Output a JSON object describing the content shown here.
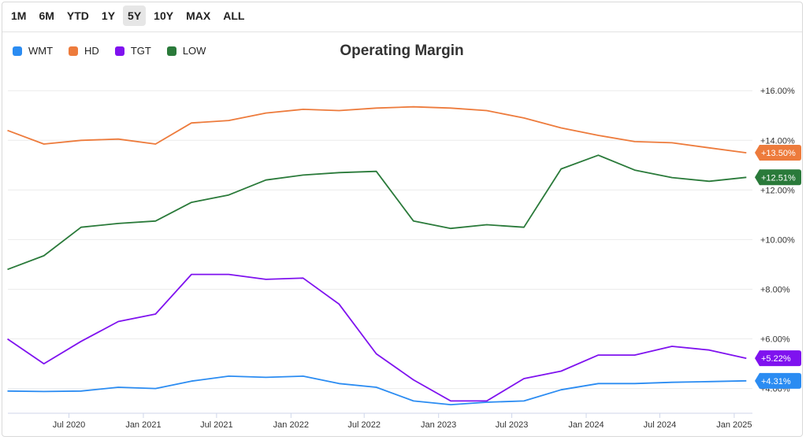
{
  "range_selector": {
    "options": [
      "1M",
      "6M",
      "YTD",
      "1Y",
      "5Y",
      "10Y",
      "MAX",
      "ALL"
    ],
    "selected": "5Y"
  },
  "chart_data": {
    "type": "line",
    "title": "Operating Margin",
    "xlabel": "",
    "ylabel": "",
    "x": [
      "2020-01-31",
      "2020-04-30",
      "2020-07-31",
      "2020-10-31",
      "2021-01-31",
      "2021-04-30",
      "2021-07-31",
      "2021-10-31",
      "2022-01-31",
      "2022-04-30",
      "2022-07-31",
      "2022-10-31",
      "2023-01-31",
      "2023-04-30",
      "2023-07-31",
      "2023-10-31",
      "2024-01-31",
      "2024-04-30",
      "2024-07-31",
      "2024-10-31",
      "2025-01-31"
    ],
    "x_tick_labels": [
      "Jul 2020",
      "Jan 2021",
      "Jul 2021",
      "Jan 2022",
      "Jul 2022",
      "Jan 2023",
      "Jul 2023",
      "Jan 2024",
      "Jul 2024",
      "Jan 2025"
    ],
    "x_tick_dates": [
      "2020-07-01",
      "2021-01-01",
      "2021-07-01",
      "2022-01-01",
      "2022-07-01",
      "2023-01-01",
      "2023-07-01",
      "2024-01-01",
      "2024-07-01",
      "2025-01-01"
    ],
    "x_range": [
      "2020-02-01",
      "2025-02-15"
    ],
    "y_tick_labels": [
      "+16.00%",
      "+14.00%",
      "+12.00%",
      "+10.00%",
      "+8.00%",
      "+6.00%",
      "+4.00%"
    ],
    "y_ticks": [
      16,
      14,
      12,
      10,
      8,
      6,
      4
    ],
    "ylim": [
      3.1,
      16.8
    ],
    "grid": true,
    "legend_position": "top-left",
    "series": [
      {
        "name": "WMT",
        "color": "#2b8cf2",
        "last_label": "+4.31%",
        "values": [
          3.9,
          3.88,
          3.9,
          4.05,
          4.0,
          4.3,
          4.5,
          4.45,
          4.5,
          4.2,
          4.05,
          3.5,
          3.35,
          3.45,
          3.5,
          3.95,
          4.2,
          4.2,
          4.25,
          4.28,
          4.31
        ]
      },
      {
        "name": "HD",
        "color": "#ed7b3c",
        "last_label": "+13.50%",
        "values": [
          14.4,
          13.85,
          14.0,
          14.05,
          13.85,
          14.7,
          14.8,
          15.1,
          15.25,
          15.2,
          15.3,
          15.35,
          15.3,
          15.2,
          14.9,
          14.5,
          14.2,
          13.95,
          13.9,
          13.7,
          13.5
        ]
      },
      {
        "name": "TGT",
        "color": "#7f12ef",
        "last_label": "+5.22%",
        "values": [
          6.0,
          5.0,
          5.9,
          6.7,
          7.0,
          8.6,
          8.6,
          8.4,
          8.45,
          7.4,
          5.4,
          4.35,
          3.5,
          3.5,
          4.4,
          4.7,
          5.35,
          5.35,
          5.7,
          5.55,
          5.22
        ]
      },
      {
        "name": "LOW",
        "color": "#2a7a3a",
        "last_label": "+12.51%",
        "values": [
          8.8,
          9.35,
          10.5,
          10.65,
          10.75,
          11.5,
          11.8,
          12.4,
          12.6,
          12.7,
          12.75,
          10.75,
          10.45,
          10.6,
          10.5,
          12.85,
          13.4,
          12.8,
          12.5,
          12.35,
          12.51
        ]
      }
    ]
  }
}
